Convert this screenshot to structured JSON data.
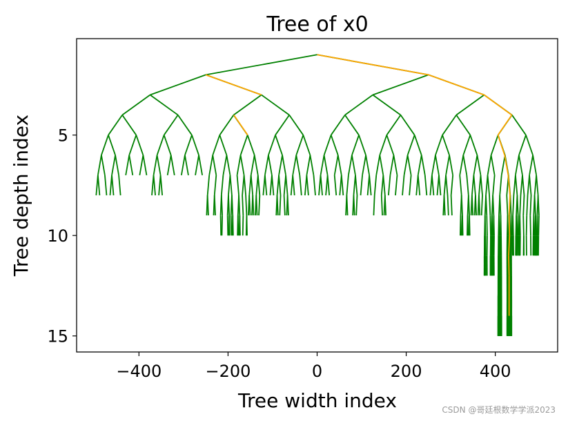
{
  "chart_data": {
    "type": "tree",
    "title": "Tree of x0",
    "xlabel": "Tree width index",
    "ylabel": "Tree depth index",
    "xlim": [
      -540,
      540
    ],
    "ylim": [
      15.8,
      0.2
    ],
    "xticks": [
      -400,
      -200,
      0,
      200,
      400
    ],
    "xtick_labels": [
      "−400",
      "−200",
      "0",
      "200",
      "400"
    ],
    "yticks": [
      5,
      10,
      15
    ],
    "ytick_labels": [
      "5",
      "10",
      "15"
    ],
    "root": [
      0,
      1
    ],
    "dense_depth": 5,
    "branch_color": "#008000",
    "path_color": "#FFA500",
    "path": [
      [
        0,
        1
      ],
      [
        250,
        2
      ],
      [
        375,
        3
      ],
      [
        437,
        4
      ],
      [
        406,
        5
      ],
      [
        421,
        6
      ],
      [
        429,
        7
      ],
      [
        433,
        8
      ],
      [
        431,
        9
      ],
      [
        432,
        10
      ],
      [
        430,
        11
      ],
      [
        431,
        12
      ],
      [
        431,
        13
      ],
      [
        431,
        14
      ]
    ],
    "extra_path_segments": [
      [
        [
          -250,
          2
        ],
        [
          -125,
          3
        ]
      ],
      [
        [
          -187,
          4
        ],
        [
          -156,
          5
        ]
      ]
    ],
    "subtree_max_depth": {
      "-500": 7,
      "-484": 8,
      "-469": 7,
      "-453": 8,
      "-437": 7,
      "-422": 7,
      "-406": 7,
      "-391": 7,
      "-375": 7,
      "-359": 8,
      "-344": 7,
      "-328": 7,
      "-312": 7,
      "-297": 7,
      "-281": 7,
      "-266": 7,
      "-250": 8,
      "-234": 9,
      "-219": 9,
      "-203": 10,
      "-187": 9,
      "-172": 10,
      "-156": 10,
      "-141": 9,
      "-125": 8,
      "-109": 8,
      "-94": 8,
      "-78": 9,
      "-62": 9,
      "-47": 8,
      "-31": 8,
      "-16": 8,
      "0": 8,
      "16": 8,
      "31": 9,
      "47": 8,
      "62": 9,
      "78": 9,
      "94": 8,
      "109": 8,
      "125": 8,
      "141": 9,
      "156": 8,
      "172": 8,
      "187": 8,
      "203": 8,
      "219": 8,
      "234": 8,
      "250": 8,
      "266": 8,
      "281": 8,
      "297": 9,
      "312": 8,
      "328": 10,
      "344": 8,
      "359": 9,
      "375": 8,
      "391": 12,
      "406": 15,
      "422": 15,
      "437": 13,
      "453": 11,
      "469": 11,
      "484": 11
    }
  },
  "watermark": "CSDN @哥廷根数学学派2023"
}
